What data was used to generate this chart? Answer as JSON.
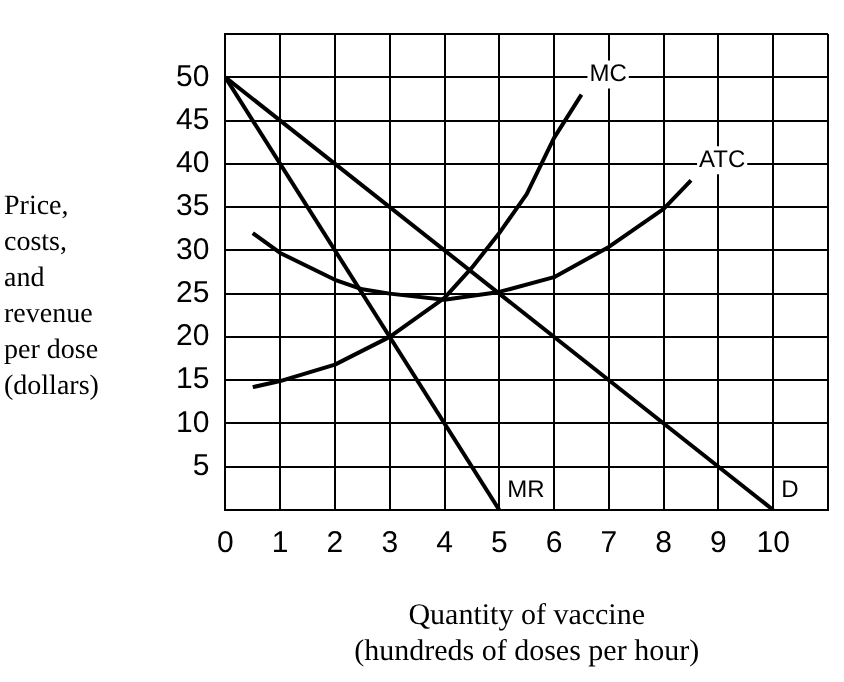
{
  "chart_data": {
    "type": "line",
    "xlabel": "Quantity of vaccine\n(hundreds of doses per hour)",
    "ylabel": "Price,\ncosts,\nand\nrevenue\nper dose\n(dollars)",
    "xlim": [
      0,
      11
    ],
    "ylim": [
      0,
      55
    ],
    "xticks": [
      0,
      1,
      2,
      3,
      4,
      5,
      6,
      7,
      8,
      9,
      10,
      {
        "value": 11,
        "label": null
      }
    ],
    "yticks": [
      {
        "value": 0,
        "label": null
      },
      5,
      10,
      15,
      20,
      25,
      30,
      35,
      40,
      45,
      50,
      {
        "value": 55,
        "label": null
      }
    ],
    "grid": true,
    "legend": false,
    "marker": "none",
    "line_style": "solid",
    "series": [
      {
        "name": "D",
        "color": "#000000",
        "x": [
          0,
          10
        ],
        "values": [
          50,
          0
        ]
      },
      {
        "name": "MR",
        "color": "#000000",
        "x": [
          0,
          5
        ],
        "values": [
          50,
          0
        ]
      },
      {
        "name": "MC",
        "color": "#000000",
        "x": [
          0.5,
          1,
          2,
          3,
          4,
          4.5,
          5,
          5.5,
          6,
          6.5
        ],
        "values": [
          14.2,
          14.9,
          16.8,
          20,
          24.5,
          28,
          32,
          36.5,
          43,
          48
        ]
      },
      {
        "name": "ATC",
        "color": "#000000",
        "x": [
          0.5,
          1,
          2,
          2.5,
          3,
          4,
          5,
          6,
          7,
          8,
          8.5
        ],
        "values": [
          32,
          29.7,
          26.6,
          25.5,
          25,
          24.3,
          25.2,
          26.9,
          30.4,
          34.8,
          38.1
        ]
      }
    ]
  }
}
